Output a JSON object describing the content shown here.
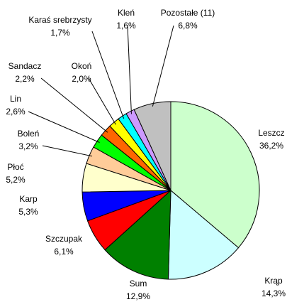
{
  "chart_data": {
    "type": "pie",
    "categories": [
      "Leszcz",
      "Krąp",
      "Sum",
      "Szczupak",
      "Karp",
      "Płoć",
      "Boleń",
      "Lin",
      "Sandacz",
      "Okoń",
      "Karaś srebrzysty",
      "Kleń",
      "Pozostałe (11)"
    ],
    "values": [
      36.2,
      14.3,
      12.9,
      6.1,
      5.3,
      5.2,
      3.2,
      2.6,
      2.2,
      2.0,
      1.7,
      1.6,
      6.8
    ],
    "value_labels": [
      "36,2%",
      "14,3%",
      "12,9%",
      "6,1%",
      "5,3%",
      "5,2%",
      "3,2%",
      "2,6%",
      "2,2%",
      "2,0%",
      "1,7%",
      "1,6%",
      "6,8%"
    ],
    "colors": [
      "#ccffcc",
      "#ccffff",
      "#008000",
      "#ff0000",
      "#0000ff",
      "#ffffcc",
      "#ffcc99",
      "#00ff00",
      "#ff6600",
      "#ffff00",
      "#00ffff",
      "#cc99ff",
      "#c0c0c0"
    ]
  }
}
